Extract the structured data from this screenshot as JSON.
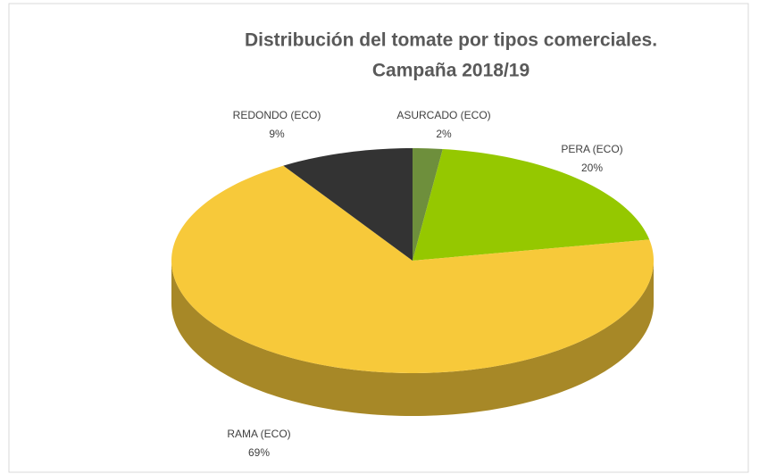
{
  "chart_data": {
    "type": "pie",
    "title": [
      "Distribución del tomate por tipos comerciales.",
      "Campaña 2018/19"
    ],
    "categories": [
      "ASURCADO (ECO)",
      "PERA (ECO)",
      "RAMA (ECO)",
      "REDONDO (ECO)"
    ],
    "values": [
      2,
      20,
      69,
      9
    ],
    "value_labels": [
      "2%",
      "20%",
      "69%",
      "9%"
    ],
    "colors": [
      "#6e8f3c",
      "#95c800",
      "#f7c93a",
      "#333333"
    ]
  }
}
